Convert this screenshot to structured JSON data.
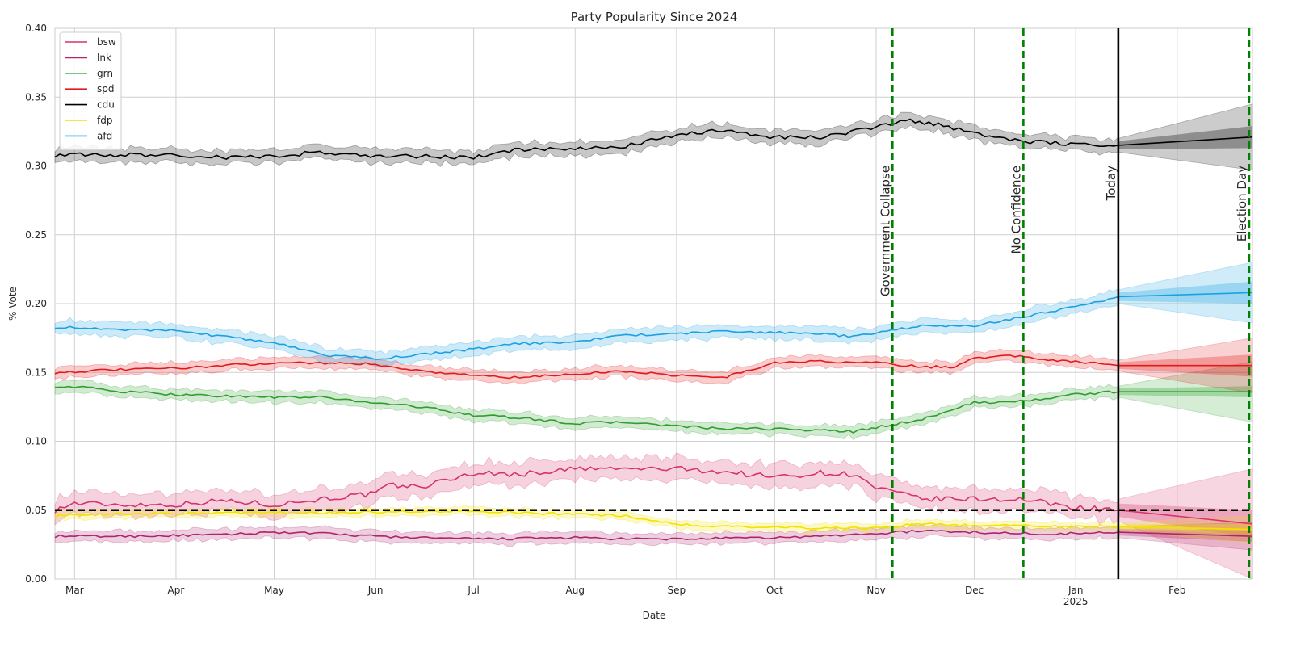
{
  "chart_data": {
    "type": "line",
    "title": "Party Popularity Since 2024",
    "xlabel": "Date",
    "ylabel": "% Vote",
    "ylim": [
      0.0,
      0.4
    ],
    "xlim": [
      "2024-02-24",
      "2025-02-24"
    ],
    "grid": true,
    "legend_position": "top-left",
    "x_ticks": [
      {
        "date": "2024-03-01",
        "label": "Mar"
      },
      {
        "date": "2024-04-01",
        "label": "Apr"
      },
      {
        "date": "2024-05-01",
        "label": "May"
      },
      {
        "date": "2024-06-01",
        "label": "Jun"
      },
      {
        "date": "2024-07-01",
        "label": "Jul"
      },
      {
        "date": "2024-08-01",
        "label": "Aug"
      },
      {
        "date": "2024-09-01",
        "label": "Sep"
      },
      {
        "date": "2024-10-01",
        "label": "Oct"
      },
      {
        "date": "2024-11-01",
        "label": "Nov"
      },
      {
        "date": "2024-12-01",
        "label": "Dec"
      },
      {
        "date": "2025-01-01",
        "label": "Jan",
        "sublabel": "2025"
      },
      {
        "date": "2025-02-01",
        "label": "Feb"
      }
    ],
    "y_ticks": [
      {
        "value": 0.0,
        "label": "0.00"
      },
      {
        "value": 0.05,
        "label": "0.05"
      },
      {
        "value": 0.1,
        "label": "0.10"
      },
      {
        "value": 0.15,
        "label": "0.15"
      },
      {
        "value": 0.2,
        "label": "0.20"
      },
      {
        "value": 0.25,
        "label": "0.25"
      },
      {
        "value": 0.3,
        "label": "0.30"
      },
      {
        "value": 0.35,
        "label": "0.35"
      },
      {
        "value": 0.4,
        "label": "0.40"
      }
    ],
    "threshold": {
      "value": 0.05,
      "style": "dashed",
      "color": "#000000"
    },
    "events": [
      {
        "label": "Government Collapse",
        "date": "2024-11-06",
        "color": "#008000",
        "style": "dashed"
      },
      {
        "label": "No Confidence",
        "date": "2024-12-16",
        "color": "#008000",
        "style": "dashed"
      },
      {
        "label": "Today",
        "date": "2025-01-14",
        "color": "#000000",
        "style": "solid"
      },
      {
        "label": "Election Day",
        "date": "2025-02-23",
        "color": "#008000",
        "style": "dashed"
      }
    ],
    "forecast_start": "2025-01-14",
    "forecast_end": "2025-02-24",
    "series": [
      {
        "name": "bsw",
        "color": "#d6336c",
        "band": 0.008,
        "points": [
          [
            "2024-02-24",
            0.05
          ],
          [
            "2024-03-01",
            0.055
          ],
          [
            "2024-03-15",
            0.054
          ],
          [
            "2024-04-01",
            0.054
          ],
          [
            "2024-04-15",
            0.057
          ],
          [
            "2024-05-01",
            0.054
          ],
          [
            "2024-05-15",
            0.058
          ],
          [
            "2024-06-01",
            0.062
          ],
          [
            "2024-06-05",
            0.068
          ],
          [
            "2024-06-15",
            0.067
          ],
          [
            "2024-07-01",
            0.077
          ],
          [
            "2024-07-15",
            0.076
          ],
          [
            "2024-08-01",
            0.08
          ],
          [
            "2024-08-15",
            0.08
          ],
          [
            "2024-09-01",
            0.08
          ],
          [
            "2024-09-15",
            0.078
          ],
          [
            "2024-10-01",
            0.074
          ],
          [
            "2024-10-15",
            0.077
          ],
          [
            "2024-10-25",
            0.076
          ],
          [
            "2024-11-01",
            0.066
          ],
          [
            "2024-11-15",
            0.058
          ],
          [
            "2024-12-01",
            0.058
          ],
          [
            "2024-12-15",
            0.058
          ],
          [
            "2025-01-01",
            0.052
          ],
          [
            "2025-01-14",
            0.05
          ]
        ],
        "forecast": {
          "end": 0.04,
          "inner_half": 0.01,
          "outer_half": 0.04
        }
      },
      {
        "name": "lnk",
        "color": "#b0246e",
        "band": 0.004,
        "points": [
          [
            "2024-02-24",
            0.031
          ],
          [
            "2024-03-15",
            0.031
          ],
          [
            "2024-04-15",
            0.032
          ],
          [
            "2024-05-01",
            0.034
          ],
          [
            "2024-05-15",
            0.033
          ],
          [
            "2024-06-01",
            0.031
          ],
          [
            "2024-06-15",
            0.03
          ],
          [
            "2024-07-01",
            0.029
          ],
          [
            "2024-08-01",
            0.03
          ],
          [
            "2024-08-15",
            0.029
          ],
          [
            "2024-09-01",
            0.029
          ],
          [
            "2024-10-01",
            0.03
          ],
          [
            "2024-10-15",
            0.031
          ],
          [
            "2024-11-01",
            0.033
          ],
          [
            "2024-11-15",
            0.035
          ],
          [
            "2024-12-01",
            0.034
          ],
          [
            "2024-12-15",
            0.033
          ],
          [
            "2025-01-01",
            0.033
          ],
          [
            "2025-01-14",
            0.034
          ]
        ],
        "forecast": {
          "end": 0.031,
          "inner_half": 0.004,
          "outer_half": 0.01
        }
      },
      {
        "name": "grn",
        "color": "#2ca02c",
        "band": 0.004,
        "points": [
          [
            "2024-02-24",
            0.14
          ],
          [
            "2024-03-05",
            0.139
          ],
          [
            "2024-03-15",
            0.136
          ],
          [
            "2024-04-01",
            0.134
          ],
          [
            "2024-04-15",
            0.133
          ],
          [
            "2024-05-01",
            0.132
          ],
          [
            "2024-05-15",
            0.132
          ],
          [
            "2024-06-01",
            0.128
          ],
          [
            "2024-06-15",
            0.125
          ],
          [
            "2024-07-01",
            0.119
          ],
          [
            "2024-07-15",
            0.117
          ],
          [
            "2024-08-01",
            0.113
          ],
          [
            "2024-08-15",
            0.114
          ],
          [
            "2024-09-01",
            0.111
          ],
          [
            "2024-09-15",
            0.109
          ],
          [
            "2024-10-01",
            0.109
          ],
          [
            "2024-10-15",
            0.108
          ],
          [
            "2024-10-25",
            0.107
          ],
          [
            "2024-11-01",
            0.11
          ],
          [
            "2024-11-15",
            0.116
          ],
          [
            "2024-12-01",
            0.128
          ],
          [
            "2024-12-15",
            0.129
          ],
          [
            "2025-01-01",
            0.134
          ],
          [
            "2025-01-14",
            0.136
          ]
        ],
        "forecast": {
          "end": 0.136,
          "inner_half": 0.004,
          "outer_half": 0.022
        }
      },
      {
        "name": "spd",
        "color": "#e31a1c",
        "band": 0.004,
        "points": [
          [
            "2024-02-24",
            0.15
          ],
          [
            "2024-03-15",
            0.152
          ],
          [
            "2024-04-01",
            0.153
          ],
          [
            "2024-04-15",
            0.155
          ],
          [
            "2024-05-01",
            0.157
          ],
          [
            "2024-05-15",
            0.157
          ],
          [
            "2024-06-01",
            0.156
          ],
          [
            "2024-06-15",
            0.151
          ],
          [
            "2024-07-01",
            0.148
          ],
          [
            "2024-07-15",
            0.146
          ],
          [
            "2024-08-01",
            0.149
          ],
          [
            "2024-08-15",
            0.151
          ],
          [
            "2024-09-01",
            0.148
          ],
          [
            "2024-09-15",
            0.146
          ],
          [
            "2024-10-01",
            0.157
          ],
          [
            "2024-10-15",
            0.158
          ],
          [
            "2024-11-01",
            0.157
          ],
          [
            "2024-11-15",
            0.154
          ],
          [
            "2024-11-25",
            0.154
          ],
          [
            "2024-12-01",
            0.161
          ],
          [
            "2024-12-15",
            0.162
          ],
          [
            "2024-12-25",
            0.159
          ],
          [
            "2025-01-01",
            0.158
          ],
          [
            "2025-01-14",
            0.155
          ]
        ],
        "forecast": {
          "end": 0.155,
          "inner_half": 0.008,
          "outer_half": 0.02
        }
      },
      {
        "name": "cdu",
        "color": "#000000",
        "band": 0.005,
        "points": [
          [
            "2024-02-24",
            0.308
          ],
          [
            "2024-03-15",
            0.308
          ],
          [
            "2024-04-01",
            0.308
          ],
          [
            "2024-04-15",
            0.306
          ],
          [
            "2024-05-01",
            0.307
          ],
          [
            "2024-05-15",
            0.31
          ],
          [
            "2024-06-01",
            0.307
          ],
          [
            "2024-06-15",
            0.307
          ],
          [
            "2024-07-01",
            0.306
          ],
          [
            "2024-07-15",
            0.312
          ],
          [
            "2024-08-01",
            0.312
          ],
          [
            "2024-08-15",
            0.314
          ],
          [
            "2024-09-01",
            0.322
          ],
          [
            "2024-09-15",
            0.326
          ],
          [
            "2024-10-01",
            0.321
          ],
          [
            "2024-10-15",
            0.321
          ],
          [
            "2024-11-01",
            0.328
          ],
          [
            "2024-11-10",
            0.333
          ],
          [
            "2024-11-20",
            0.33
          ],
          [
            "2024-12-01",
            0.324
          ],
          [
            "2024-12-15",
            0.318
          ],
          [
            "2025-01-01",
            0.316
          ],
          [
            "2025-01-14",
            0.315
          ]
        ],
        "forecast": {
          "end": 0.321,
          "inner_half": 0.008,
          "outer_half": 0.024
        }
      },
      {
        "name": "fdp",
        "color": "#f2e200",
        "band": 0.003,
        "points": [
          [
            "2024-02-24",
            0.046
          ],
          [
            "2024-03-15",
            0.047
          ],
          [
            "2024-04-15",
            0.048
          ],
          [
            "2024-05-15",
            0.048
          ],
          [
            "2024-06-15",
            0.049
          ],
          [
            "2024-07-01",
            0.049
          ],
          [
            "2024-07-15",
            0.048
          ],
          [
            "2024-08-15",
            0.046
          ],
          [
            "2024-09-01",
            0.04
          ],
          [
            "2024-09-15",
            0.038
          ],
          [
            "2024-10-15",
            0.037
          ],
          [
            "2024-11-01",
            0.037
          ],
          [
            "2024-11-15",
            0.04
          ],
          [
            "2024-12-01",
            0.039
          ],
          [
            "2024-12-15",
            0.039
          ],
          [
            "2025-01-01",
            0.038
          ],
          [
            "2025-01-14",
            0.038
          ]
        ],
        "forecast": {
          "end": 0.036,
          "inner_half": 0.004,
          "outer_half": 0.01
        }
      },
      {
        "name": "afd",
        "color": "#1ba1e2",
        "band": 0.005,
        "points": [
          [
            "2024-02-24",
            0.183
          ],
          [
            "2024-03-15",
            0.181
          ],
          [
            "2024-04-01",
            0.181
          ],
          [
            "2024-04-15",
            0.176
          ],
          [
            "2024-05-01",
            0.172
          ],
          [
            "2024-05-15",
            0.163
          ],
          [
            "2024-06-01",
            0.16
          ],
          [
            "2024-06-15",
            0.163
          ],
          [
            "2024-07-01",
            0.167
          ],
          [
            "2024-07-15",
            0.171
          ],
          [
            "2024-08-01",
            0.172
          ],
          [
            "2024-08-15",
            0.177
          ],
          [
            "2024-09-01",
            0.178
          ],
          [
            "2024-09-15",
            0.18
          ],
          [
            "2024-10-01",
            0.179
          ],
          [
            "2024-10-15",
            0.178
          ],
          [
            "2024-10-25",
            0.176
          ],
          [
            "2024-11-01",
            0.179
          ],
          [
            "2024-11-15",
            0.184
          ],
          [
            "2024-12-01",
            0.184
          ],
          [
            "2024-12-15",
            0.19
          ],
          [
            "2025-01-01",
            0.198
          ],
          [
            "2025-01-14",
            0.205
          ]
        ],
        "forecast": {
          "end": 0.208,
          "inner_half": 0.008,
          "outer_half": 0.022
        }
      }
    ]
  }
}
